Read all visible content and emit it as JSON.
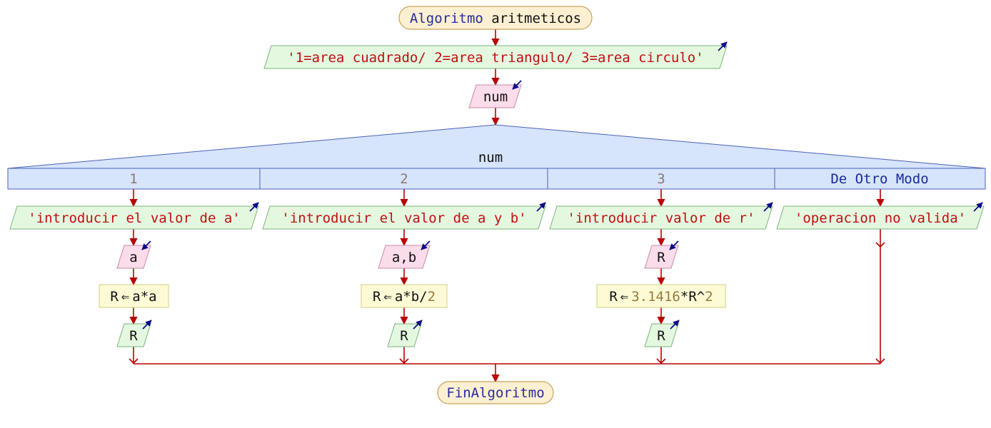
{
  "start_label": "Algoritmo",
  "algorithm_name": "aritmeticos",
  "end_label": "FinAlgoritmo",
  "menu_prompt": "'1=area cuadrado/ 2=area triangulo/ 3=area circulo'",
  "switch": {
    "input_var": "num",
    "variable": "num",
    "cases": [
      {
        "value": "1",
        "prompt": "'introducir el valor de a'",
        "read": "a",
        "assign_target": "R",
        "assign_arrow": "⇐",
        "expr_parts": [
          {
            "text": "a*a",
            "kind": "id"
          }
        ],
        "write": "R"
      },
      {
        "value": "2",
        "prompt": "'introducir el valor de a y b'",
        "read": "a,b",
        "assign_target": "R",
        "assign_arrow": "⇐",
        "expr_parts": [
          {
            "text": "a*b/",
            "kind": "id"
          },
          {
            "text": "2",
            "kind": "num"
          }
        ],
        "write": "R"
      },
      {
        "value": "3",
        "prompt": "'introducir valor de r'",
        "read": "R",
        "assign_target": "R",
        "assign_arrow": "⇐",
        "expr_parts": [
          {
            "text": "3.1416",
            "kind": "num"
          },
          {
            "text": "*R^",
            "kind": "id"
          },
          {
            "text": "2",
            "kind": "num"
          }
        ],
        "write": "R"
      }
    ],
    "default_label": "De Otro Modo",
    "default_prompt": "'operacion no valida'"
  },
  "colors": {
    "flow_line": "#bb0000",
    "output_fill": "#e4f8e0",
    "input_fill": "#fadcea",
    "process_fill": "#fdfad6",
    "terminal_fill": "#fdf0d2",
    "switch_fill": "#d6e4fc",
    "io_arrow": "#0a0a8a"
  },
  "icons": {
    "output": "arrow-up-right-icon",
    "input": "arrow-down-left-icon"
  }
}
